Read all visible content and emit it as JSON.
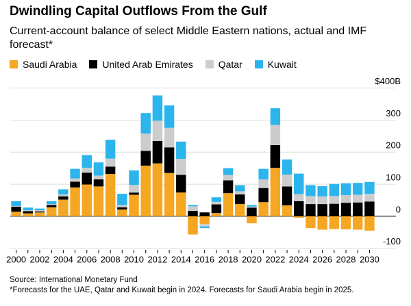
{
  "title": "Dwindling Capital Outflows From the Gulf",
  "chart_data": {
    "type": "stacked_bar",
    "subtitle": "Current-account balance of select Middle Eastern nations, actual and IMF forecast*",
    "categories": [
      "2000",
      null,
      "2002",
      null,
      "2004",
      null,
      "2006",
      null,
      "2008",
      null,
      "2010",
      null,
      "2012",
      null,
      "2014",
      null,
      "2016",
      null,
      "2018",
      null,
      "2020",
      null,
      "2022",
      null,
      "2024",
      null,
      "2026",
      null,
      "2028",
      null,
      "2030"
    ],
    "series": [
      {
        "name": "Saudi Arabia",
        "color": "#f5a623",
        "values": [
          14,
          9,
          12,
          28,
          52,
          90,
          99,
          93,
          132,
          21,
          67,
          158,
          165,
          135,
          74,
          -57,
          -24,
          10,
          72,
          38,
          -22,
          44,
          151,
          34,
          -5,
          -37,
          -42,
          -40,
          -41,
          -42,
          -45
        ]
      },
      {
        "name": "United Arab Emirates",
        "color": "#000000",
        "values": [
          16,
          7,
          3,
          7,
          10,
          18,
          37,
          22,
          23,
          7,
          7,
          46,
          70,
          80,
          55,
          17,
          12,
          27,
          40,
          30,
          27,
          44,
          71,
          59,
          47,
          38,
          38,
          39,
          42,
          43,
          46
        ]
      },
      {
        "name": "Qatar",
        "color": "#cccccc",
        "values": [
          2,
          3,
          4,
          3,
          6,
          10,
          15,
          12,
          25,
          7,
          24,
          54,
          63,
          61,
          50,
          14,
          -8,
          8,
          17,
          10,
          3,
          27,
          63,
          37,
          22,
          25,
          24,
          24,
          24,
          24,
          24
        ]
      },
      {
        "name": "Kuwait",
        "color": "#2bb5ec",
        "values": [
          15,
          8,
          5,
          9,
          16,
          30,
          40,
          41,
          59,
          35,
          45,
          64,
          79,
          70,
          54,
          4,
          -5,
          14,
          21,
          19,
          5,
          33,
          52,
          47,
          64,
          34,
          32,
          38,
          37,
          37,
          37
        ]
      }
    ],
    "ylim": [
      -105,
      410
    ],
    "yticks": [
      -100,
      0,
      100,
      200,
      300,
      {
        "value": 400,
        "label": "$400B"
      }
    ],
    "grid": true,
    "legend": "top-left",
    "source": "Source: International Monetary Fund",
    "note": "*Forecasts for the UAE, Qatar and Kuwait begin in 2024. Forecasts for Saudi Arabia begin in 2025."
  }
}
